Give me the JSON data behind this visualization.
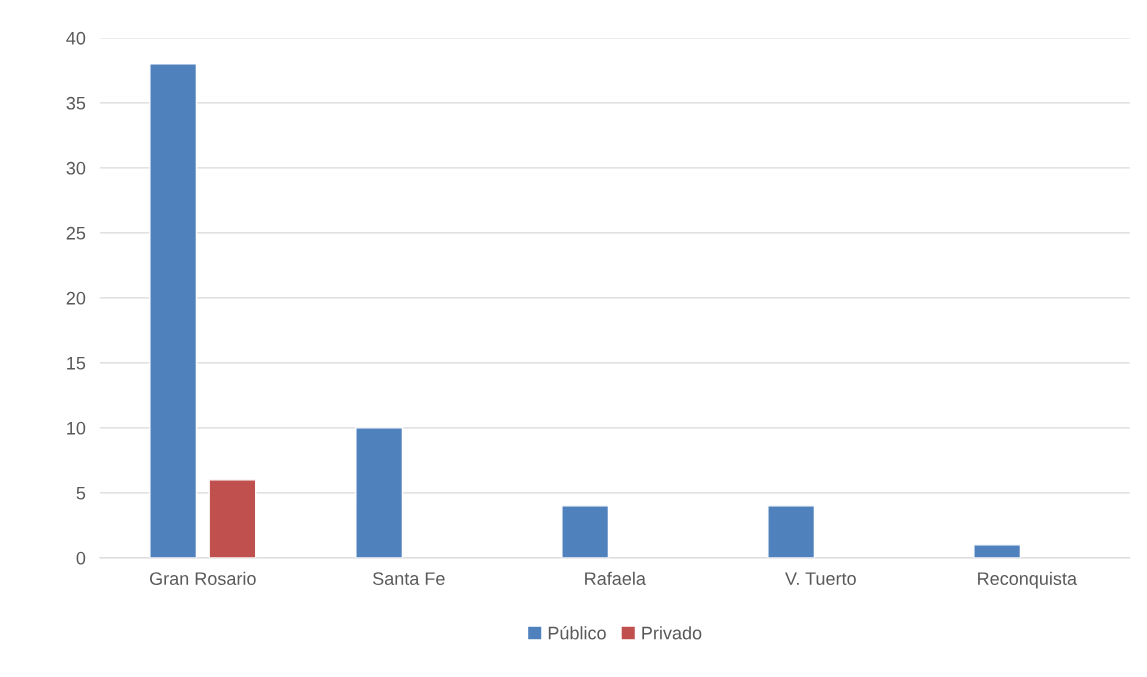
{
  "chart_data": {
    "type": "bar",
    "categories": [
      "Gran Rosario",
      "Santa Fe",
      "Rafaela",
      "V. Tuerto",
      "Reconquista"
    ],
    "series": [
      {
        "name": "Público",
        "color": "#4f81bd",
        "values": [
          38,
          10,
          4,
          4,
          1
        ]
      },
      {
        "name": "Privado",
        "color": "#c0504d",
        "values": [
          6,
          null,
          null,
          null,
          null
        ]
      }
    ],
    "ylim": [
      0,
      40
    ],
    "yticks": [
      0,
      5,
      10,
      15,
      20,
      25,
      30,
      35,
      40
    ],
    "grid": "y",
    "legend": "bottom"
  }
}
